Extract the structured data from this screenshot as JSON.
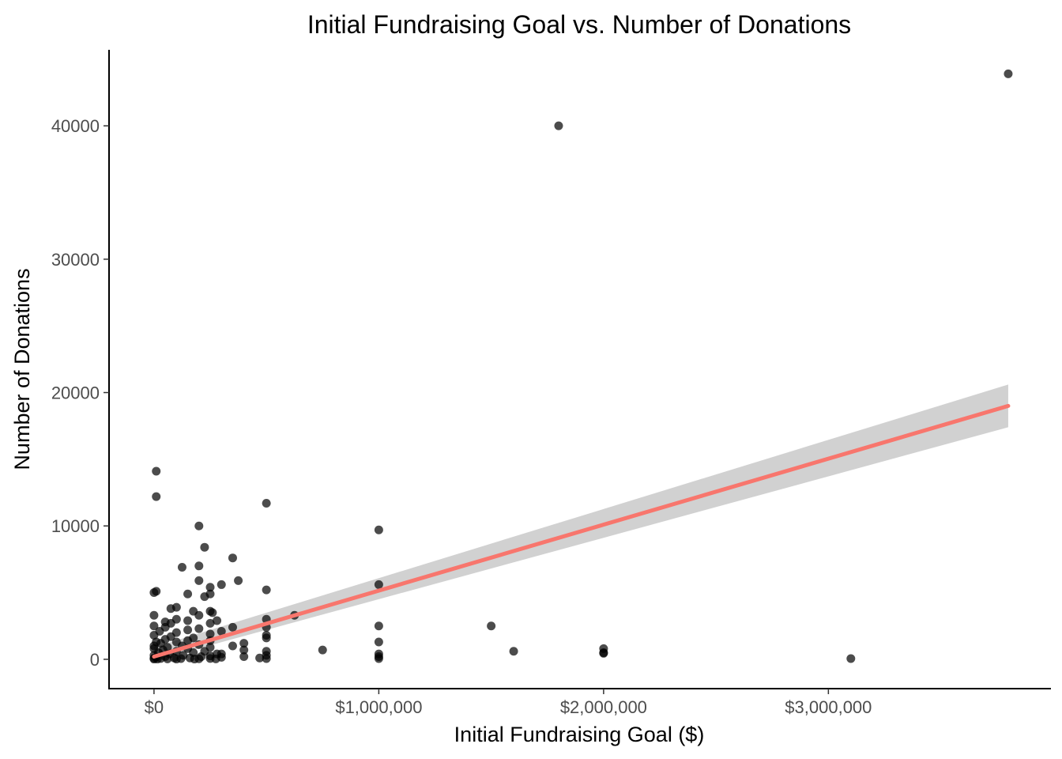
{
  "chart_data": {
    "type": "scatter",
    "title": "Initial Fundraising Goal vs. Number of Donations",
    "xlabel": "Initial Fundraising Goal ($)",
    "ylabel": "Number of Donations",
    "xlim": [
      -200000,
      3990000
    ],
    "ylim": [
      -2200,
      45700
    ],
    "x_ticks": [
      0,
      1000000,
      2000000,
      3000000
    ],
    "x_tick_labels": [
      "$0",
      "$1,000,000",
      "$2,000,000",
      "$3,000,000"
    ],
    "y_ticks": [
      0,
      10000,
      20000,
      30000,
      40000
    ],
    "y_tick_labels": [
      "0",
      "10000",
      "20000",
      "30000",
      "40000"
    ],
    "grid": false,
    "colors": {
      "points": "#000000",
      "trend_line": "#f8766d",
      "confidence_band": "#bebebe"
    },
    "trend_line": {
      "method": "linear",
      "x": [
        0,
        3800000
      ],
      "y": [
        200,
        19000
      ],
      "ci_upper": [
        900,
        20600
      ],
      "ci_lower": [
        -100,
        17400
      ]
    },
    "points": [
      {
        "x": 10000,
        "y": 14100
      },
      {
        "x": 10000,
        "y": 12200
      },
      {
        "x": 200000,
        "y": 10000
      },
      {
        "x": 500000,
        "y": 11700
      },
      {
        "x": 1000000,
        "y": 9700
      },
      {
        "x": 225000,
        "y": 8400
      },
      {
        "x": 350000,
        "y": 7600
      },
      {
        "x": 200000,
        "y": 7000
      },
      {
        "x": 125000,
        "y": 6900
      },
      {
        "x": 375000,
        "y": 5900
      },
      {
        "x": 200000,
        "y": 5900
      },
      {
        "x": 300000,
        "y": 5600
      },
      {
        "x": 1000000,
        "y": 5600
      },
      {
        "x": 250000,
        "y": 5400
      },
      {
        "x": 10000,
        "y": 5100
      },
      {
        "x": 0,
        "y": 5000
      },
      {
        "x": 500000,
        "y": 5200
      },
      {
        "x": 250000,
        "y": 4900
      },
      {
        "x": 150000,
        "y": 4900
      },
      {
        "x": 225000,
        "y": 4700
      },
      {
        "x": 75000,
        "y": 3800
      },
      {
        "x": 100000,
        "y": 3900
      },
      {
        "x": 175000,
        "y": 3600
      },
      {
        "x": 250000,
        "y": 3600
      },
      {
        "x": 260000,
        "y": 3500
      },
      {
        "x": 200000,
        "y": 3300
      },
      {
        "x": 0,
        "y": 3300
      },
      {
        "x": 625000,
        "y": 3300
      },
      {
        "x": 500000,
        "y": 3000
      },
      {
        "x": 100000,
        "y": 3000
      },
      {
        "x": 150000,
        "y": 2900
      },
      {
        "x": 280000,
        "y": 2900
      },
      {
        "x": 50000,
        "y": 2800
      },
      {
        "x": 250000,
        "y": 2700
      },
      {
        "x": 75000,
        "y": 2700
      },
      {
        "x": 1000000,
        "y": 2500
      },
      {
        "x": 1500000,
        "y": 2500
      },
      {
        "x": 350000,
        "y": 2400
      },
      {
        "x": 50000,
        "y": 2400
      },
      {
        "x": 0,
        "y": 2500
      },
      {
        "x": 500000,
        "y": 2400
      },
      {
        "x": 200000,
        "y": 2300
      },
      {
        "x": 150000,
        "y": 2200
      },
      {
        "x": 300000,
        "y": 2100
      },
      {
        "x": 25000,
        "y": 2100
      },
      {
        "x": 100000,
        "y": 2000
      },
      {
        "x": 500000,
        "y": 1800
      },
      {
        "x": 250000,
        "y": 1900
      },
      {
        "x": 0,
        "y": 1800
      },
      {
        "x": 75000,
        "y": 1700
      },
      {
        "x": 175000,
        "y": 1600
      },
      {
        "x": 500000,
        "y": 1600
      },
      {
        "x": 50000,
        "y": 1500
      },
      {
        "x": 150000,
        "y": 1400
      },
      {
        "x": 250000,
        "y": 1400
      },
      {
        "x": 10000,
        "y": 1300
      },
      {
        "x": 100000,
        "y": 1300
      },
      {
        "x": 1000000,
        "y": 1300
      },
      {
        "x": 400000,
        "y": 1200
      },
      {
        "x": 30000,
        "y": 1200
      },
      {
        "x": 200000,
        "y": 1100
      },
      {
        "x": 350000,
        "y": 1000
      },
      {
        "x": 0,
        "y": 1000
      },
      {
        "x": 125000,
        "y": 1000
      },
      {
        "x": 60000,
        "y": 900
      },
      {
        "x": 250000,
        "y": 900
      },
      {
        "x": 2000000,
        "y": 800
      },
      {
        "x": 0,
        "y": 800
      },
      {
        "x": 150000,
        "y": 800
      },
      {
        "x": 400000,
        "y": 700
      },
      {
        "x": 750000,
        "y": 700
      },
      {
        "x": 40000,
        "y": 700
      },
      {
        "x": 1600000,
        "y": 600
      },
      {
        "x": 500000,
        "y": 600
      },
      {
        "x": 225000,
        "y": 600
      },
      {
        "x": 100000,
        "y": 600
      },
      {
        "x": 2000000,
        "y": 500
      },
      {
        "x": 2000000,
        "y": 450
      },
      {
        "x": 20000,
        "y": 500
      },
      {
        "x": 175000,
        "y": 500
      },
      {
        "x": 280000,
        "y": 400
      },
      {
        "x": 300000,
        "y": 400
      },
      {
        "x": 1000000,
        "y": 400
      },
      {
        "x": 70000,
        "y": 400
      },
      {
        "x": 500000,
        "y": 300
      },
      {
        "x": 0,
        "y": 300
      },
      {
        "x": 130000,
        "y": 300
      },
      {
        "x": 250000,
        "y": 250
      },
      {
        "x": 400000,
        "y": 200
      },
      {
        "x": 50000,
        "y": 200
      },
      {
        "x": 1000000,
        "y": 200
      },
      {
        "x": 210000,
        "y": 200
      },
      {
        "x": 10000,
        "y": 150
      },
      {
        "x": 300000,
        "y": 150
      },
      {
        "x": 470000,
        "y": 100
      },
      {
        "x": 90000,
        "y": 100
      },
      {
        "x": 160000,
        "y": 100
      },
      {
        "x": 0,
        "y": 80
      },
      {
        "x": 3100000,
        "y": 50
      },
      {
        "x": 1000000,
        "y": 50
      },
      {
        "x": 500000,
        "y": 50
      },
      {
        "x": 250000,
        "y": 60
      },
      {
        "x": 30000,
        "y": 60
      },
      {
        "x": 120000,
        "y": 50
      },
      {
        "x": 200000,
        "y": 40
      },
      {
        "x": 60000,
        "y": 30
      },
      {
        "x": 0,
        "y": 20
      },
      {
        "x": 15000,
        "y": 20
      },
      {
        "x": 100000,
        "y": 20
      },
      {
        "x": 180000,
        "y": 20
      },
      {
        "x": 275000,
        "y": 30
      },
      {
        "x": 1800000,
        "y": 40000
      },
      {
        "x": 3800000,
        "y": 43900
      }
    ]
  }
}
